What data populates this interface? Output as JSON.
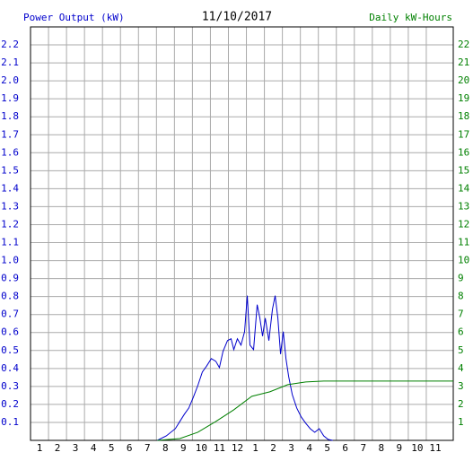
{
  "chart_data": {
    "type": "line",
    "title": "11/10/2017",
    "y_label": "Power Output (kW)",
    "y2_label": "Daily kW-Hours",
    "xlim": [
      0.5,
      24
    ],
    "xticks": [
      1,
      2,
      3,
      4,
      5,
      6,
      7,
      8,
      9,
      10,
      11,
      12,
      {
        "value": 13,
        "label": "1"
      },
      {
        "value": 14,
        "label": "2"
      },
      {
        "value": 15,
        "label": "3"
      },
      {
        "value": 16,
        "label": "4"
      },
      {
        "value": 17,
        "label": "5"
      },
      {
        "value": 18,
        "label": "6"
      },
      {
        "value": 19,
        "label": "7"
      },
      {
        "value": 20,
        "label": "8"
      },
      {
        "value": 21,
        "label": "9"
      },
      {
        "value": 22,
        "label": "10"
      },
      {
        "value": 23,
        "label": "11"
      }
    ],
    "ylim": [
      0,
      2.3
    ],
    "yticks": [
      0.1,
      0.2,
      0.3,
      0.4,
      0.5,
      0.6,
      0.7,
      0.8,
      0.9,
      {
        "value": 1,
        "label": "1.0"
      },
      1.1,
      1.2,
      1.3,
      1.4,
      1.5,
      1.6,
      1.7,
      1.8,
      1.9,
      {
        "value": 2,
        "label": "2.0"
      },
      2.1,
      2.2
    ],
    "y2lim": [
      0,
      23
    ],
    "y2ticks": [
      1,
      2,
      3,
      4,
      5,
      6,
      7,
      8,
      9,
      10,
      11,
      12,
      13,
      14,
      15,
      16,
      17,
      18,
      19,
      20,
      21,
      22
    ],
    "grid": true,
    "y_color": "#0000cc",
    "y2_color": "#008000",
    "series": [
      {
        "name": "Power Output (kW)",
        "color": "#0000cc",
        "axis": "y",
        "x": [
          7.55,
          8.05,
          8.55,
          8.8,
          9.05,
          9.3,
          9.55,
          9.8,
          10.05,
          10.3,
          10.55,
          10.8,
          11.0,
          11.2,
          11.45,
          11.65,
          11.8,
          12.0,
          12.2,
          12.4,
          12.55,
          12.7,
          12.9,
          13.1,
          13.25,
          13.4,
          13.55,
          13.75,
          13.95,
          14.1,
          14.25,
          14.4,
          14.55,
          14.7,
          14.85,
          15.05,
          15.3,
          15.55,
          15.8,
          16.05,
          16.3,
          16.55,
          16.8,
          17.05,
          17.3
        ],
        "values": [
          0,
          0.025,
          0.065,
          0.105,
          0.145,
          0.18,
          0.24,
          0.305,
          0.38,
          0.415,
          0.455,
          0.44,
          0.405,
          0.495,
          0.555,
          0.565,
          0.505,
          0.565,
          0.53,
          0.605,
          0.805,
          0.53,
          0.505,
          0.755,
          0.68,
          0.58,
          0.68,
          0.555,
          0.73,
          0.805,
          0.68,
          0.48,
          0.605,
          0.455,
          0.355,
          0.255,
          0.18,
          0.13,
          0.095,
          0.065,
          0.045,
          0.065,
          0.025,
          0.005,
          0
        ]
      },
      {
        "name": "Daily kW-Hours",
        "color": "#008000",
        "axis": "y2",
        "x": [
          7.55,
          8.8,
          9.8,
          10.8,
          11.8,
          12.8,
          13.8,
          14.8,
          15.8,
          16.8,
          24
        ],
        "values": [
          0,
          0.1,
          0.45,
          1.05,
          1.7,
          2.45,
          2.7,
          3.1,
          3.25,
          3.3,
          3.3
        ]
      }
    ]
  }
}
